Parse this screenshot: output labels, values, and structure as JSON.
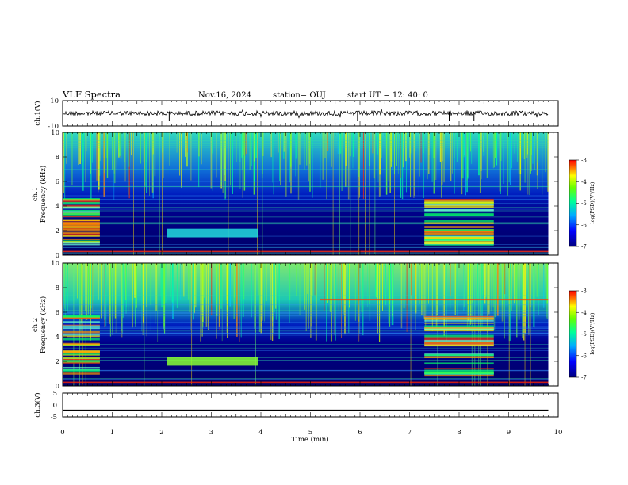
{
  "header": {
    "title": "VLF Spectra",
    "date": "Nov.16, 2024",
    "station": "station= OUJ",
    "start": "start  UT =   12: 40: 0"
  },
  "chart_data": {
    "type": "heatmap",
    "xlabel": "Time (min)",
    "xlim": [
      0,
      10
    ],
    "x_ticks": [
      "0",
      "1",
      "2",
      "3",
      "4",
      "5",
      "6",
      "7",
      "8",
      "9",
      "10"
    ],
    "panels": [
      {
        "kind": "waveform",
        "ylabel": "ch.1(V)",
        "ylim": [
          -10,
          10
        ],
        "y_ticks": [
          "10",
          "-10"
        ],
        "data_end_min": 9.8
      },
      {
        "kind": "spectrogram",
        "ylabel": "ch.1\nFrequency (kHz)",
        "ylim": [
          0,
          10
        ],
        "y_ticks": [
          "0",
          "2",
          "4",
          "6",
          "8",
          "10"
        ],
        "features": {
          "low_band_segments_min": [
            [
              0,
              0.75
            ],
            [
              7.3,
              8.7
            ]
          ],
          "emission_1_8kHz_min": [
            2.1,
            3.95
          ]
        }
      },
      {
        "kind": "spectrogram",
        "ylabel": "ch.2\nFrequency (kHz)",
        "ylim": [
          0,
          10
        ],
        "y_ticks": [
          "0",
          "2",
          "4",
          "6",
          "8",
          "10"
        ],
        "features": {
          "low_band_segments_min": [
            [
              0,
              0.75
            ],
            [
              7.3,
              8.7
            ]
          ],
          "emission_2kHz_min": [
            2.1,
            3.95
          ],
          "line_7kHz_min": [
            5.2,
            9.8
          ]
        }
      },
      {
        "kind": "waveform",
        "ylabel": "ch.3(V)",
        "ylim": [
          -5,
          5
        ],
        "y_ticks": [
          "5",
          "0",
          "-5"
        ],
        "constant_value": -2.2
      }
    ],
    "colorbars": [
      {
        "label": "log(PSD)(V²/Hz)",
        "range": [
          -7,
          -3
        ],
        "ticks": [
          "-3",
          "-4",
          "-5",
          "-6",
          "-7"
        ]
      },
      {
        "label": "log(PSD)(V²/Hz)",
        "range": [
          -7,
          -3
        ],
        "ticks": [
          "-3",
          "-4",
          "-5",
          "-6",
          "-7"
        ]
      }
    ],
    "colors": {
      "low": "#00007f",
      "mid_low": "#0044ff",
      "mid": "#00ffcc",
      "mid_high": "#7fff00",
      "high": "#ffff00",
      "top": "#ff0000"
    }
  }
}
